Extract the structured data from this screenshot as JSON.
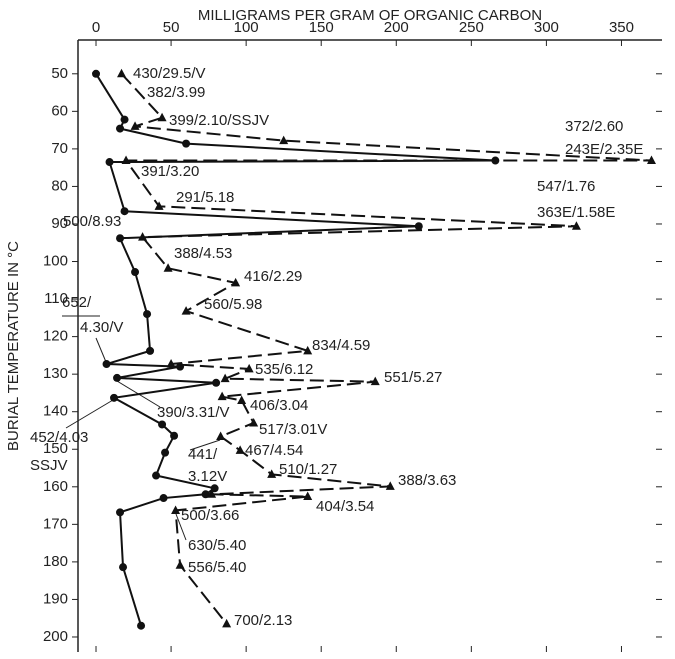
{
  "chart_data": {
    "type": "line",
    "x_label": "MILLIGRAMS PER GRAM OF ORGANIC CARBON",
    "y_label": "BURIAL TEMPERATURE IN °C",
    "xlim": [
      -12,
      377
    ],
    "ylim": [
      41,
      204
    ],
    "y_inverted": true,
    "xticks": [
      0,
      50,
      100,
      150,
      200,
      250,
      300,
      350
    ],
    "yticks": [
      50,
      60,
      70,
      80,
      90,
      100,
      110,
      120,
      130,
      140,
      150,
      160,
      170,
      180,
      190,
      200
    ],
    "series": [
      {
        "color": "#111111",
        "style": "solid",
        "marker": "circle",
        "x": [
          0,
          19,
          16,
          60,
          266,
          9,
          19,
          215,
          16,
          26,
          34,
          36,
          7,
          56,
          14,
          80,
          12,
          44,
          52,
          46,
          40,
          79,
          73,
          45,
          16,
          18,
          30
        ],
        "values": [
          50,
          62.2,
          64.6,
          68.6,
          73.1,
          73.5,
          86.6,
          90.6,
          93.8,
          102.8,
          114,
          123.8,
          127.3,
          128,
          131,
          132.3,
          136.3,
          143.4,
          146.4,
          150.9,
          157,
          160.4,
          162,
          163,
          166.8,
          181.4,
          197
        ]
      },
      {
        "color": "#111111",
        "style": "dashed",
        "marker": "triangle",
        "x": [
          17,
          44,
          26,
          125,
          370,
          20,
          42,
          320,
          31,
          48,
          93,
          60,
          141,
          50,
          102,
          86,
          186,
          84,
          97,
          105,
          83,
          96,
          117,
          196,
          77,
          141,
          53,
          56,
          87
        ],
        "values": [
          50,
          61.7,
          64,
          67.8,
          73.1,
          73.1,
          85.3,
          90.6,
          93.5,
          101.8,
          105.7,
          113.2,
          123.8,
          127.3,
          128.6,
          131.2,
          132,
          136,
          137,
          143,
          146.6,
          150.3,
          156.7,
          159.9,
          162,
          162.6,
          166.3,
          180.9,
          196.5
        ]
      }
    ],
    "annotations": [
      "430/29.5/V",
      "382/3.99",
      "399/2.10/SSJV",
      "372/2.60",
      "243E/2.35E",
      "391/3.20",
      "291/5.18",
      "547/1.76",
      "363E/1.58E",
      "500/8.93",
      "388/4.53",
      "416/2.29",
      "652/",
      "4.30/V",
      "560/5.98",
      "834/4.59",
      "535/6.12",
      "551/5.27",
      "406/3.04",
      "390/3.31/V",
      "517/3.01V",
      "452/4.03",
      "SSJV",
      "441/",
      "3.12V",
      "467/4.54",
      "510/1.27",
      "388/3.63",
      "500/3.66",
      "404/3.54",
      "630/5.40",
      "556/5.40",
      "700/2.13"
    ]
  }
}
